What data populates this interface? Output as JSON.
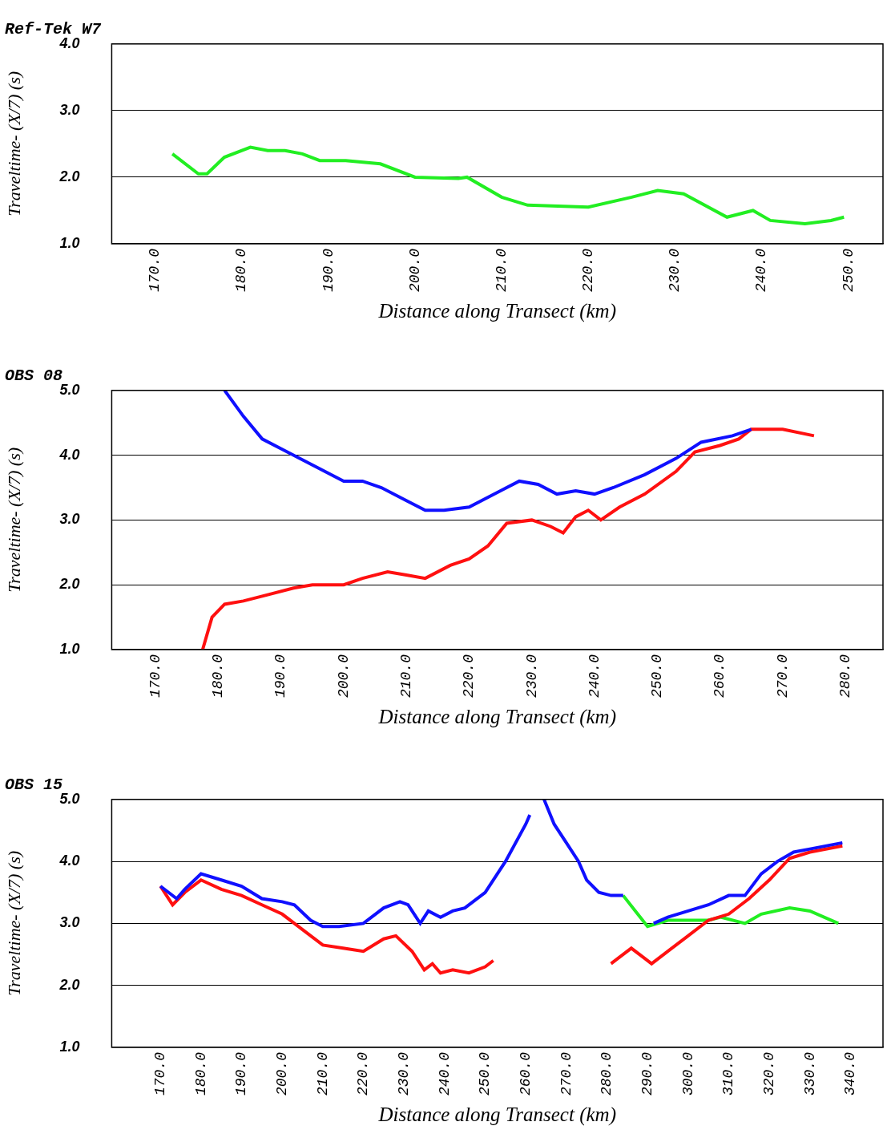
{
  "chart_data": [
    {
      "type": "line",
      "title": "Ref-Tek W7",
      "x_label": "Distance along Transect (km)",
      "y_label": "Traveltime- (X/7) (s)",
      "xlim": [
        165,
        254
      ],
      "xticks": [
        {
          "value": 170,
          "label": "170.0"
        },
        {
          "value": 180,
          "label": "180.0"
        },
        {
          "value": 190,
          "label": "190.0"
        },
        {
          "value": 200,
          "label": "200.0"
        },
        {
          "value": 210,
          "label": "210.0"
        },
        {
          "value": 220,
          "label": "220.0"
        },
        {
          "value": 230,
          "label": "230.0"
        },
        {
          "value": 240,
          "label": "240.0"
        },
        {
          "value": 250,
          "label": "250.0"
        }
      ],
      "ylim": [
        1,
        4
      ],
      "yticks": [
        {
          "value": 1,
          "label": "1.0"
        },
        {
          "value": 2,
          "label": "2.0"
        },
        {
          "value": 3,
          "label": "3.0"
        },
        {
          "value": 4,
          "label": "4.0"
        }
      ],
      "grid": "y",
      "series": [
        {
          "color": "#22ee22",
          "x": [
            172,
            175,
            176,
            178,
            181,
            183,
            185,
            187,
            189,
            192,
            196,
            200,
            205,
            206,
            210,
            213,
            220,
            225,
            228,
            231,
            236,
            239,
            241,
            245,
            248,
            249.5
          ],
          "values": [
            2.35,
            2.05,
            2.05,
            2.3,
            2.45,
            2.4,
            2.4,
            2.35,
            2.25,
            2.25,
            2.2,
            2.0,
            1.98,
            2.0,
            1.7,
            1.58,
            1.55,
            1.7,
            1.8,
            1.75,
            1.4,
            1.5,
            1.35,
            1.3,
            1.35,
            1.4
          ]
        }
      ]
    },
    {
      "type": "line",
      "title": "OBS 08",
      "x_label": "Distance along Transect (km)",
      "y_label": "Traveltime- (X/7) (s)",
      "xlim": [
        163,
        286
      ],
      "xticks": [
        {
          "value": 170,
          "label": "170.0"
        },
        {
          "value": 180,
          "label": "180.0"
        },
        {
          "value": 190,
          "label": "190.0"
        },
        {
          "value": 200,
          "label": "200.0"
        },
        {
          "value": 210,
          "label": "210.0"
        },
        {
          "value": 220,
          "label": "220.0"
        },
        {
          "value": 230,
          "label": "230.0"
        },
        {
          "value": 240,
          "label": "240.0"
        },
        {
          "value": 250,
          "label": "250.0"
        },
        {
          "value": 260,
          "label": "260.0"
        },
        {
          "value": 270,
          "label": "270.0"
        },
        {
          "value": 280,
          "label": "280.0"
        }
      ],
      "ylim": [
        1,
        5
      ],
      "yticks": [
        {
          "value": 1,
          "label": "1.0"
        },
        {
          "value": 2,
          "label": "2.0"
        },
        {
          "value": 3,
          "label": "3.0"
        },
        {
          "value": 4,
          "label": "4.0"
        },
        {
          "value": 5,
          "label": "5.0"
        }
      ],
      "grid": "y",
      "series": [
        {
          "color": "#1010ff",
          "x": [
            181,
            184,
            187,
            190,
            195,
            200,
            203,
            206,
            210,
            213,
            216,
            220,
            225,
            228,
            231,
            234,
            237,
            240,
            243,
            248,
            253,
            257,
            262,
            265
          ],
          "values": [
            5.0,
            4.6,
            4.25,
            4.1,
            3.85,
            3.6,
            3.6,
            3.5,
            3.3,
            3.15,
            3.15,
            3.2,
            3.45,
            3.6,
            3.55,
            3.4,
            3.45,
            3.4,
            3.5,
            3.7,
            3.95,
            4.2,
            4.3,
            4.4
          ]
        },
        {
          "color": "#ff1010",
          "x": [
            177.5,
            179,
            181,
            184,
            188,
            192,
            195,
            200,
            203,
            207,
            210,
            213,
            217,
            220,
            223,
            226,
            230,
            233,
            235,
            237,
            239,
            241,
            244,
            248,
            253,
            256,
            260,
            263,
            265,
            270,
            275
          ],
          "values": [
            1.0,
            1.5,
            1.7,
            1.75,
            1.85,
            1.95,
            2.0,
            2.0,
            2.1,
            2.2,
            2.15,
            2.1,
            2.3,
            2.4,
            2.6,
            2.95,
            3.0,
            2.9,
            2.8,
            3.05,
            3.15,
            3.0,
            3.2,
            3.4,
            3.75,
            4.05,
            4.15,
            4.25,
            4.4,
            4.4,
            4.3
          ]
        }
      ]
    },
    {
      "type": "line",
      "title": "OBS 15",
      "x_label": "Distance along Transect (km)",
      "y_label": "Traveltime- (X/7) (s)",
      "xlim": [
        158,
        348
      ],
      "xticks": [
        {
          "value": 170,
          "label": "170.0"
        },
        {
          "value": 180,
          "label": "180.0"
        },
        {
          "value": 190,
          "label": "190.0"
        },
        {
          "value": 200,
          "label": "200.0"
        },
        {
          "value": 210,
          "label": "210.0"
        },
        {
          "value": 220,
          "label": "220.0"
        },
        {
          "value": 230,
          "label": "230.0"
        },
        {
          "value": 240,
          "label": "240.0"
        },
        {
          "value": 250,
          "label": "250.0"
        },
        {
          "value": 260,
          "label": "260.0"
        },
        {
          "value": 270,
          "label": "270.0"
        },
        {
          "value": 280,
          "label": "280.0"
        },
        {
          "value": 290,
          "label": "290.0"
        },
        {
          "value": 300,
          "label": "300.0"
        },
        {
          "value": 310,
          "label": "310.0"
        },
        {
          "value": 320,
          "label": "320.0"
        },
        {
          "value": 330,
          "label": "330.0"
        },
        {
          "value": 340,
          "label": "340.0"
        }
      ],
      "ylim": [
        1,
        5
      ],
      "yticks": [
        {
          "value": 1,
          "label": "1.0"
        },
        {
          "value": 2,
          "label": "2.0"
        },
        {
          "value": 3,
          "label": "3.0"
        },
        {
          "value": 4,
          "label": "4.0"
        },
        {
          "value": 5,
          "label": "5.0"
        }
      ],
      "grid": "y",
      "series": [
        {
          "color": "#1010ff",
          "x": [
            170,
            172,
            174,
            176,
            180,
            185,
            190,
            195,
            200,
            203,
            207,
            210,
            214,
            220,
            225,
            229,
            231,
            234,
            236,
            239,
            242,
            245,
            250,
            255,
            260,
            261,
            262.5,
            264.5,
            267,
            270,
            273,
            275,
            278,
            281,
            284,
            287,
            291.5,
            295,
            300,
            305,
            310,
            314,
            318,
            322,
            326,
            330,
            338
          ],
          "values": [
            3.6,
            3.5,
            3.4,
            3.55,
            3.8,
            3.7,
            3.6,
            3.4,
            3.35,
            3.3,
            3.05,
            2.95,
            2.95,
            3.0,
            3.25,
            3.35,
            3.3,
            3.0,
            3.2,
            3.1,
            3.2,
            3.25,
            3.5,
            4.0,
            4.6,
            4.75,
            null,
            5.0,
            4.6,
            4.3,
            4.0,
            3.7,
            3.5,
            3.45,
            3.45,
            null,
            3.0,
            3.1,
            3.2,
            3.3,
            3.45,
            3.45,
            3.8,
            4.0,
            4.15,
            4.2,
            4.3
          ]
        },
        {
          "color": "#ff1010",
          "x": [
            170,
            173,
            176,
            180,
            185,
            190,
            195,
            200,
            205,
            210,
            215,
            220,
            225,
            228,
            232,
            235,
            237,
            239,
            242,
            246,
            250,
            252,
            266,
            281,
            283,
            286,
            289,
            291,
            295,
            300,
            305,
            310,
            315,
            320,
            325,
            330,
            338
          ],
          "values": [
            3.6,
            3.3,
            3.5,
            3.7,
            3.55,
            3.45,
            3.3,
            3.15,
            2.9,
            2.65,
            2.6,
            2.55,
            2.75,
            2.8,
            2.55,
            2.25,
            2.35,
            2.2,
            2.25,
            2.2,
            2.3,
            2.4,
            null,
            2.35,
            2.45,
            2.6,
            2.45,
            2.35,
            2.55,
            2.8,
            3.05,
            3.15,
            3.4,
            3.7,
            4.05,
            4.15,
            4.25
          ]
        },
        {
          "color": "#22ee22",
          "x": [
            284,
            287,
            290,
            295,
            300,
            305,
            308,
            314,
            318,
            325,
            330,
            337
          ],
          "values": [
            3.45,
            3.2,
            2.95,
            3.05,
            3.05,
            3.05,
            3.1,
            3.0,
            3.15,
            3.25,
            3.2,
            3.0
          ]
        }
      ]
    }
  ]
}
